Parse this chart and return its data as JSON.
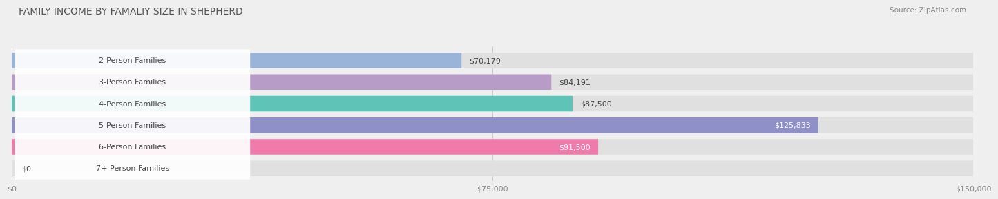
{
  "title": "FAMILY INCOME BY FAMALIY SIZE IN SHEPHERD",
  "source": "Source: ZipAtlas.com",
  "categories": [
    "2-Person Families",
    "3-Person Families",
    "4-Person Families",
    "5-Person Families",
    "6-Person Families",
    "7+ Person Families"
  ],
  "values": [
    70179,
    84191,
    87500,
    125833,
    91500,
    0
  ],
  "bar_colors": [
    "#9ab3d9",
    "#b89cc8",
    "#5ec4b8",
    "#9090c8",
    "#f07aaa",
    "#f5d6a8"
  ],
  "label_text_color": "#444444",
  "value_label_colors_inside": [
    false,
    false,
    false,
    true,
    true,
    false
  ],
  "x_max": 150000,
  "x_ticks": [
    0,
    75000,
    150000
  ],
  "x_tick_labels": [
    "$0",
    "$75,000",
    "$150,000"
  ],
  "background_color": "#efefef",
  "bar_bg_color": "#e0e0e0",
  "value_labels": [
    "$70,179",
    "$84,191",
    "$87,500",
    "$125,833",
    "$91,500",
    "$0"
  ],
  "title_fontsize": 10,
  "label_fontsize": 8,
  "value_fontsize": 8,
  "tick_fontsize": 8,
  "bar_height": 0.72,
  "label_pill_color": "#ffffff",
  "label_pill_alpha": 0.9
}
